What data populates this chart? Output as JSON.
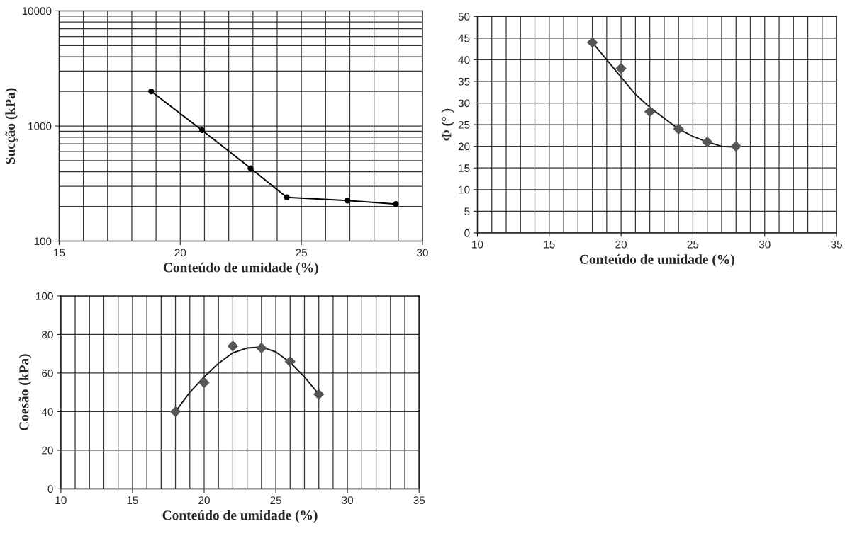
{
  "chart_data": [
    {
      "type": "line",
      "xlabel": "Conteúdo de umidade (%)",
      "ylabel": "Sucção (kPa)",
      "log": "y",
      "grid": true,
      "marker": "circle",
      "line_style": "solid",
      "series": [
        {
          "color": "#000000",
          "x": [
            18.8,
            20.9,
            22.9,
            24.4,
            26.9,
            28.9
          ],
          "values": [
            2000,
            920,
            430,
            240,
            225,
            210
          ]
        }
      ],
      "xlim": [
        15,
        30
      ],
      "xticks": [
        15,
        20,
        25,
        30
      ],
      "ylim": [
        100,
        10000
      ],
      "yticks": [
        100,
        1000,
        10000
      ]
    },
    {
      "type": "scatter",
      "xlabel": "Conteúdo de umidade (%)",
      "ylabel": "Φ (° )",
      "grid": true,
      "marker": "diamond",
      "series": [
        {
          "color": "#555555",
          "x": [
            18,
            20,
            22,
            24,
            26,
            28
          ],
          "values": [
            44,
            38,
            28,
            24,
            21,
            20
          ]
        },
        {
          "type": "line",
          "color": "#1a1a1a",
          "marker": "none",
          "line_style": "solid",
          "x": [
            18,
            19,
            20,
            21,
            22,
            23,
            24,
            25,
            26,
            27,
            28
          ],
          "values": [
            44,
            40,
            36,
            32,
            29,
            26.5,
            24,
            22.3,
            21,
            20,
            19.8
          ]
        }
      ],
      "xlim": [
        10,
        35
      ],
      "xticks": [
        10,
        15,
        20,
        25,
        30,
        35
      ],
      "ylim": [
        0,
        50
      ],
      "yticks": [
        0,
        5,
        10,
        15,
        20,
        25,
        30,
        35,
        40,
        45,
        50
      ]
    },
    {
      "type": "scatter",
      "xlabel": "Conteúdo de umidade (%)",
      "ylabel": "Coesão (kPa)",
      "grid": true,
      "marker": "diamond",
      "series": [
        {
          "color": "#555555",
          "x": [
            18,
            20,
            22,
            24,
            26,
            28
          ],
          "values": [
            40,
            55,
            74,
            73,
            66,
            49
          ]
        },
        {
          "type": "line",
          "color": "#1a1a1a",
          "marker": "none",
          "line_style": "solid",
          "x": [
            18,
            19,
            20,
            21,
            22,
            23,
            24,
            25,
            26,
            27,
            28
          ],
          "values": [
            40,
            50,
            58,
            65,
            70.5,
            73,
            73.5,
            71,
            65.5,
            58,
            49
          ]
        }
      ],
      "xlim": [
        10,
        35
      ],
      "xticks": [
        10,
        15,
        20,
        25,
        30,
        35
      ],
      "ylim": [
        0,
        100
      ],
      "yticks": [
        0,
        20,
        40,
        60,
        80,
        100
      ]
    }
  ]
}
